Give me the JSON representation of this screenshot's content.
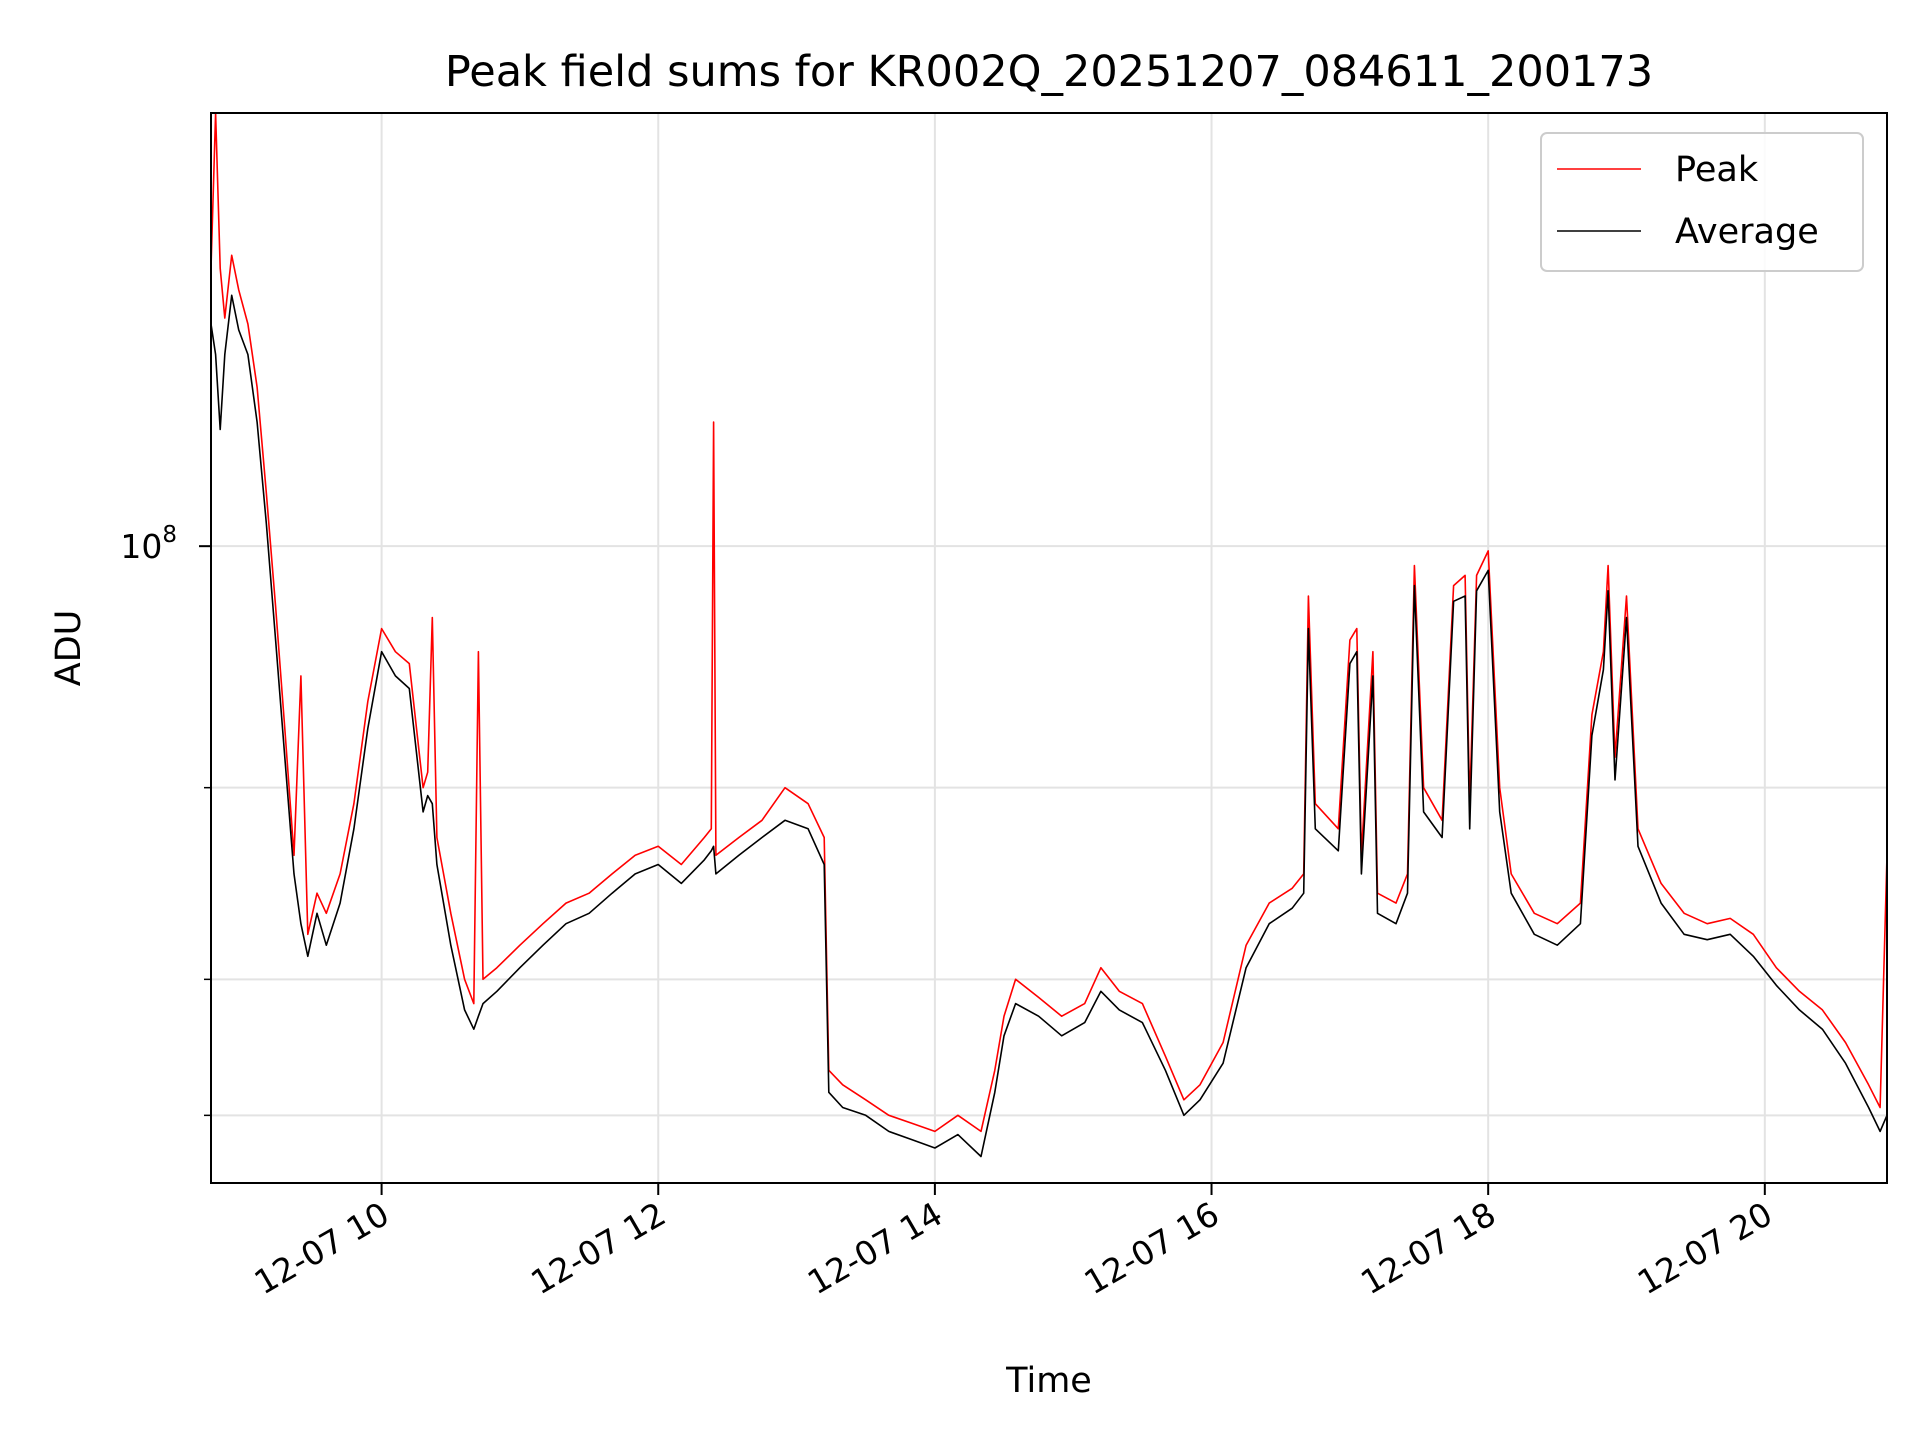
{
  "chart_data": {
    "type": "line",
    "title": "Peak field sums for KR002Q_20251207_084611_200173",
    "xlabel": "Time",
    "ylabel": "ADU",
    "x_range": [
      "2025-12-07T08:46",
      "2025-12-07T20:53"
    ],
    "y_range": [
      26000000,
      250000000
    ],
    "y_scale": "log",
    "grid": true,
    "legend_position": "top-right",
    "x_ticks": [
      {
        "t": "2025-12-07T10:00",
        "label": "12-07 10"
      },
      {
        "t": "2025-12-07T12:00",
        "label": "12-07 12"
      },
      {
        "t": "2025-12-07T14:00",
        "label": "12-07 14"
      },
      {
        "t": "2025-12-07T16:00",
        "label": "12-07 16"
      },
      {
        "t": "2025-12-07T18:00",
        "label": "12-07 18"
      },
      {
        "t": "2025-12-07T20:00",
        "label": "12-07 20"
      }
    ],
    "y_major_ticks": [
      {
        "value": 100000000,
        "base": "10",
        "exp": "8"
      }
    ],
    "y_minor_ticks": [
      30000000,
      40000000,
      60000000
    ],
    "series": [
      {
        "name": "Peak",
        "color": "#ff0000",
        "points": [
          [
            "2025-12-07T08:46",
            180000000
          ],
          [
            "2025-12-07T08:48",
            250000000
          ],
          [
            "2025-12-07T08:50",
            180000000
          ],
          [
            "2025-12-07T08:52",
            162000000
          ],
          [
            "2025-12-07T08:55",
            185000000
          ],
          [
            "2025-12-07T08:58",
            172000000
          ],
          [
            "2025-12-07T09:02",
            160000000
          ],
          [
            "2025-12-07T09:06",
            140000000
          ],
          [
            "2025-12-07T09:10",
            112000000
          ],
          [
            "2025-12-07T09:14",
            88000000
          ],
          [
            "2025-12-07T09:18",
            68000000
          ],
          [
            "2025-12-07T09:22",
            52000000
          ],
          [
            "2025-12-07T09:25",
            76000000
          ],
          [
            "2025-12-07T09:28",
            44000000
          ],
          [
            "2025-12-07T09:32",
            48000000
          ],
          [
            "2025-12-07T09:36",
            46000000
          ],
          [
            "2025-12-07T09:42",
            50000000
          ],
          [
            "2025-12-07T09:48",
            58000000
          ],
          [
            "2025-12-07T09:54",
            72000000
          ],
          [
            "2025-12-07T10:00",
            84000000
          ],
          [
            "2025-12-07T10:06",
            80000000
          ],
          [
            "2025-12-07T10:12",
            78000000
          ],
          [
            "2025-12-07T10:18",
            60000000
          ],
          [
            "2025-12-07T10:20",
            62000000
          ],
          [
            "2025-12-07T10:22",
            86000000
          ],
          [
            "2025-12-07T10:24",
            54000000
          ],
          [
            "2025-12-07T10:30",
            46000000
          ],
          [
            "2025-12-07T10:36",
            40000000
          ],
          [
            "2025-12-07T10:40",
            38000000
          ],
          [
            "2025-12-07T10:42",
            80000000
          ],
          [
            "2025-12-07T10:44",
            40000000
          ],
          [
            "2025-12-07T10:50",
            41000000
          ],
          [
            "2025-12-07T11:00",
            43000000
          ],
          [
            "2025-12-07T11:10",
            45000000
          ],
          [
            "2025-12-07T11:20",
            47000000
          ],
          [
            "2025-12-07T11:30",
            48000000
          ],
          [
            "2025-12-07T11:40",
            50000000
          ],
          [
            "2025-12-07T11:50",
            52000000
          ],
          [
            "2025-12-07T12:00",
            53000000
          ],
          [
            "2025-12-07T12:10",
            51000000
          ],
          [
            "2025-12-07T12:20",
            54000000
          ],
          [
            "2025-12-07T12:23",
            55000000
          ],
          [
            "2025-12-07T12:24",
            130000000
          ],
          [
            "2025-12-07T12:25",
            52000000
          ],
          [
            "2025-12-07T12:35",
            54000000
          ],
          [
            "2025-12-07T12:45",
            56000000
          ],
          [
            "2025-12-07T12:55",
            60000000
          ],
          [
            "2025-12-07T13:05",
            58000000
          ],
          [
            "2025-12-07T13:12",
            54000000
          ],
          [
            "2025-12-07T13:14",
            33000000
          ],
          [
            "2025-12-07T13:20",
            32000000
          ],
          [
            "2025-12-07T13:30",
            31000000
          ],
          [
            "2025-12-07T13:40",
            30000000
          ],
          [
            "2025-12-07T13:50",
            29500000
          ],
          [
            "2025-12-07T14:00",
            29000000
          ],
          [
            "2025-12-07T14:10",
            30000000
          ],
          [
            "2025-12-07T14:20",
            29000000
          ],
          [
            "2025-12-07T14:26",
            33000000
          ],
          [
            "2025-12-07T14:30",
            37000000
          ],
          [
            "2025-12-07T14:35",
            40000000
          ],
          [
            "2025-12-07T14:45",
            38500000
          ],
          [
            "2025-12-07T14:55",
            37000000
          ],
          [
            "2025-12-07T15:05",
            38000000
          ],
          [
            "2025-12-07T15:12",
            41000000
          ],
          [
            "2025-12-07T15:20",
            39000000
          ],
          [
            "2025-12-07T15:30",
            38000000
          ],
          [
            "2025-12-07T15:40",
            34000000
          ],
          [
            "2025-12-07T15:48",
            31000000
          ],
          [
            "2025-12-07T15:55",
            32000000
          ],
          [
            "2025-12-07T16:05",
            35000000
          ],
          [
            "2025-12-07T16:15",
            43000000
          ],
          [
            "2025-12-07T16:25",
            47000000
          ],
          [
            "2025-12-07T16:35",
            48500000
          ],
          [
            "2025-12-07T16:40",
            50000000
          ],
          [
            "2025-12-07T16:42",
            90000000
          ],
          [
            "2025-12-07T16:45",
            58000000
          ],
          [
            "2025-12-07T16:55",
            55000000
          ],
          [
            "2025-12-07T17:00",
            82000000
          ],
          [
            "2025-12-07T17:03",
            84000000
          ],
          [
            "2025-12-07T17:05",
            52000000
          ],
          [
            "2025-12-07T17:10",
            80000000
          ],
          [
            "2025-12-07T17:12",
            48000000
          ],
          [
            "2025-12-07T17:20",
            47000000
          ],
          [
            "2025-12-07T17:25",
            50000000
          ],
          [
            "2025-12-07T17:28",
            96000000
          ],
          [
            "2025-12-07T17:32",
            60000000
          ],
          [
            "2025-12-07T17:40",
            56000000
          ],
          [
            "2025-12-07T17:45",
            92000000
          ],
          [
            "2025-12-07T17:50",
            94000000
          ],
          [
            "2025-12-07T17:52",
            58000000
          ],
          [
            "2025-12-07T17:55",
            94000000
          ],
          [
            "2025-12-07T18:00",
            99000000
          ],
          [
            "2025-12-07T18:05",
            60000000
          ],
          [
            "2025-12-07T18:10",
            50000000
          ],
          [
            "2025-12-07T18:20",
            46000000
          ],
          [
            "2025-12-07T18:30",
            45000000
          ],
          [
            "2025-12-07T18:40",
            47000000
          ],
          [
            "2025-12-07T18:45",
            70000000
          ],
          [
            "2025-12-07T18:50",
            80000000
          ],
          [
            "2025-12-07T18:52",
            96000000
          ],
          [
            "2025-12-07T18:55",
            64000000
          ],
          [
            "2025-12-07T19:00",
            90000000
          ],
          [
            "2025-12-07T19:05",
            55000000
          ],
          [
            "2025-12-07T19:15",
            49000000
          ],
          [
            "2025-12-07T19:25",
            46000000
          ],
          [
            "2025-12-07T19:35",
            45000000
          ],
          [
            "2025-12-07T19:45",
            45500000
          ],
          [
            "2025-12-07T19:55",
            44000000
          ],
          [
            "2025-12-07T20:05",
            41000000
          ],
          [
            "2025-12-07T20:15",
            39000000
          ],
          [
            "2025-12-07T20:25",
            37500000
          ],
          [
            "2025-12-07T20:35",
            35000000
          ],
          [
            "2025-12-07T20:45",
            32000000
          ],
          [
            "2025-12-07T20:50",
            30500000
          ],
          [
            "2025-12-07T20:53",
            52000000
          ]
        ]
      },
      {
        "name": "Average",
        "color": "#000000",
        "points": [
          [
            "2025-12-07T08:46",
            160000000
          ],
          [
            "2025-12-07T08:48",
            150000000
          ],
          [
            "2025-12-07T08:50",
            128000000
          ],
          [
            "2025-12-07T08:52",
            150000000
          ],
          [
            "2025-12-07T08:55",
            170000000
          ],
          [
            "2025-12-07T08:58",
            158000000
          ],
          [
            "2025-12-07T09:02",
            150000000
          ],
          [
            "2025-12-07T09:06",
            130000000
          ],
          [
            "2025-12-07T09:10",
            105000000
          ],
          [
            "2025-12-07T09:14",
            82000000
          ],
          [
            "2025-12-07T09:18",
            64000000
          ],
          [
            "2025-12-07T09:22",
            50000000
          ],
          [
            "2025-12-07T09:25",
            45000000
          ],
          [
            "2025-12-07T09:28",
            42000000
          ],
          [
            "2025-12-07T09:32",
            46000000
          ],
          [
            "2025-12-07T09:36",
            43000000
          ],
          [
            "2025-12-07T09:42",
            47000000
          ],
          [
            "2025-12-07T09:48",
            55000000
          ],
          [
            "2025-12-07T09:54",
            68000000
          ],
          [
            "2025-12-07T10:00",
            80000000
          ],
          [
            "2025-12-07T10:06",
            76000000
          ],
          [
            "2025-12-07T10:12",
            74000000
          ],
          [
            "2025-12-07T10:18",
            57000000
          ],
          [
            "2025-12-07T10:20",
            59000000
          ],
          [
            "2025-12-07T10:22",
            58000000
          ],
          [
            "2025-12-07T10:24",
            51000000
          ],
          [
            "2025-12-07T10:30",
            43000000
          ],
          [
            "2025-12-07T10:36",
            37500000
          ],
          [
            "2025-12-07T10:40",
            36000000
          ],
          [
            "2025-12-07T10:42",
            37000000
          ],
          [
            "2025-12-07T10:44",
            38000000
          ],
          [
            "2025-12-07T10:50",
            39000000
          ],
          [
            "2025-12-07T11:00",
            41000000
          ],
          [
            "2025-12-07T11:10",
            43000000
          ],
          [
            "2025-12-07T11:20",
            45000000
          ],
          [
            "2025-12-07T11:30",
            46000000
          ],
          [
            "2025-12-07T11:40",
            48000000
          ],
          [
            "2025-12-07T11:50",
            50000000
          ],
          [
            "2025-12-07T12:00",
            51000000
          ],
          [
            "2025-12-07T12:10",
            49000000
          ],
          [
            "2025-12-07T12:20",
            51500000
          ],
          [
            "2025-12-07T12:23",
            52500000
          ],
          [
            "2025-12-07T12:24",
            53000000
          ],
          [
            "2025-12-07T12:25",
            50000000
          ],
          [
            "2025-12-07T12:35",
            52000000
          ],
          [
            "2025-12-07T12:45",
            54000000
          ],
          [
            "2025-12-07T12:55",
            56000000
          ],
          [
            "2025-12-07T13:05",
            55000000
          ],
          [
            "2025-12-07T13:12",
            51000000
          ],
          [
            "2025-12-07T13:14",
            31500000
          ],
          [
            "2025-12-07T13:20",
            30500000
          ],
          [
            "2025-12-07T13:30",
            30000000
          ],
          [
            "2025-12-07T13:40",
            29000000
          ],
          [
            "2025-12-07T13:50",
            28500000
          ],
          [
            "2025-12-07T14:00",
            28000000
          ],
          [
            "2025-12-07T14:10",
            28800000
          ],
          [
            "2025-12-07T14:20",
            27500000
          ],
          [
            "2025-12-07T14:26",
            31500000
          ],
          [
            "2025-12-07T14:30",
            35500000
          ],
          [
            "2025-12-07T14:35",
            38000000
          ],
          [
            "2025-12-07T14:45",
            37000000
          ],
          [
            "2025-12-07T14:55",
            35500000
          ],
          [
            "2025-12-07T15:05",
            36500000
          ],
          [
            "2025-12-07T15:12",
            39000000
          ],
          [
            "2025-12-07T15:20",
            37500000
          ],
          [
            "2025-12-07T15:30",
            36500000
          ],
          [
            "2025-12-07T15:40",
            33000000
          ],
          [
            "2025-12-07T15:48",
            30000000
          ],
          [
            "2025-12-07T15:55",
            31000000
          ],
          [
            "2025-12-07T16:05",
            33500000
          ],
          [
            "2025-12-07T16:15",
            41000000
          ],
          [
            "2025-12-07T16:25",
            45000000
          ],
          [
            "2025-12-07T16:35",
            46500000
          ],
          [
            "2025-12-07T16:40",
            48000000
          ],
          [
            "2025-12-07T16:42",
            84000000
          ],
          [
            "2025-12-07T16:45",
            55000000
          ],
          [
            "2025-12-07T16:55",
            52500000
          ],
          [
            "2025-12-07T17:00",
            78000000
          ],
          [
            "2025-12-07T17:03",
            80000000
          ],
          [
            "2025-12-07T17:05",
            50000000
          ],
          [
            "2025-12-07T17:10",
            76000000
          ],
          [
            "2025-12-07T17:12",
            46000000
          ],
          [
            "2025-12-07T17:20",
            45000000
          ],
          [
            "2025-12-07T17:25",
            48000000
          ],
          [
            "2025-12-07T17:28",
            92000000
          ],
          [
            "2025-12-07T17:32",
            57000000
          ],
          [
            "2025-12-07T17:40",
            54000000
          ],
          [
            "2025-12-07T17:45",
            89000000
          ],
          [
            "2025-12-07T17:50",
            90000000
          ],
          [
            "2025-12-07T17:52",
            55000000
          ],
          [
            "2025-12-07T17:55",
            91000000
          ],
          [
            "2025-12-07T18:00",
            95000000
          ],
          [
            "2025-12-07T18:05",
            57000000
          ],
          [
            "2025-12-07T18:10",
            48000000
          ],
          [
            "2025-12-07T18:20",
            44000000
          ],
          [
            "2025-12-07T18:30",
            43000000
          ],
          [
            "2025-12-07T18:40",
            45000000
          ],
          [
            "2025-12-07T18:45",
            67000000
          ],
          [
            "2025-12-07T18:50",
            77000000
          ],
          [
            "2025-12-07T18:52",
            91000000
          ],
          [
            "2025-12-07T18:55",
            61000000
          ],
          [
            "2025-12-07T19:00",
            86000000
          ],
          [
            "2025-12-07T19:05",
            53000000
          ],
          [
            "2025-12-07T19:15",
            47000000
          ],
          [
            "2025-12-07T19:25",
            44000000
          ],
          [
            "2025-12-07T19:35",
            43500000
          ],
          [
            "2025-12-07T19:45",
            44000000
          ],
          [
            "2025-12-07T19:55",
            42000000
          ],
          [
            "2025-12-07T20:05",
            39500000
          ],
          [
            "2025-12-07T20:15",
            37500000
          ],
          [
            "2025-12-07T20:25",
            36000000
          ],
          [
            "2025-12-07T20:35",
            33500000
          ],
          [
            "2025-12-07T20:45",
            30500000
          ],
          [
            "2025-12-07T20:50",
            29000000
          ],
          [
            "2025-12-07T20:53",
            30000000
          ]
        ]
      }
    ]
  }
}
